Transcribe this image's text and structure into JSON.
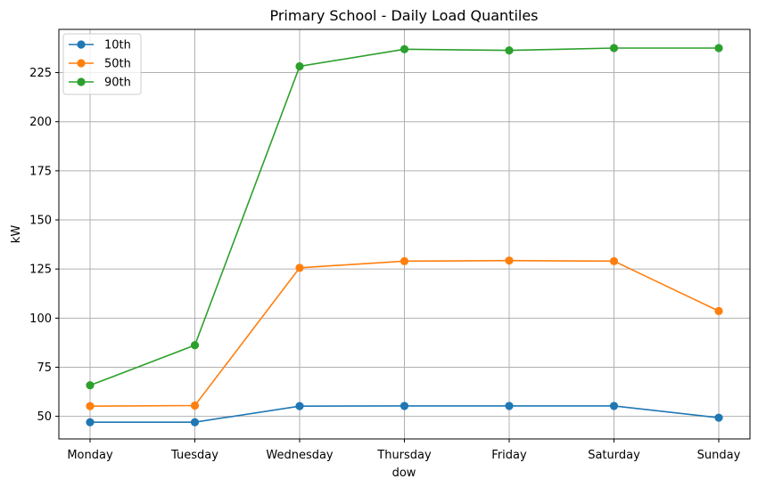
{
  "chart_data": {
    "type": "line",
    "title": "Primary School - Daily Load Quantiles",
    "xlabel": "dow",
    "ylabel": "kW",
    "categories": [
      "Monday",
      "Tuesday",
      "Wednesday",
      "Thursday",
      "Friday",
      "Saturday",
      "Sunday"
    ],
    "ylim": [
      38.5,
      247
    ],
    "yticks": [
      50,
      75,
      100,
      125,
      150,
      175,
      200,
      225
    ],
    "ytick_labels": [
      "50",
      "75",
      "100",
      "125",
      "150",
      "175",
      "200",
      "225"
    ],
    "grid": true,
    "legend_position": "top-left",
    "series": [
      {
        "name": "10th",
        "color": "#1f77b4",
        "values": [
          47.0,
          47.0,
          55.2,
          55.3,
          55.3,
          55.3,
          49.3
        ]
      },
      {
        "name": "50th",
        "color": "#ff7f0e",
        "values": [
          55.2,
          55.5,
          125.6,
          129.0,
          129.3,
          129.0,
          103.6
        ]
      },
      {
        "name": "90th",
        "color": "#2ca02c",
        "values": [
          65.8,
          86.2,
          228.2,
          236.9,
          236.3,
          237.5,
          237.5
        ]
      }
    ]
  }
}
